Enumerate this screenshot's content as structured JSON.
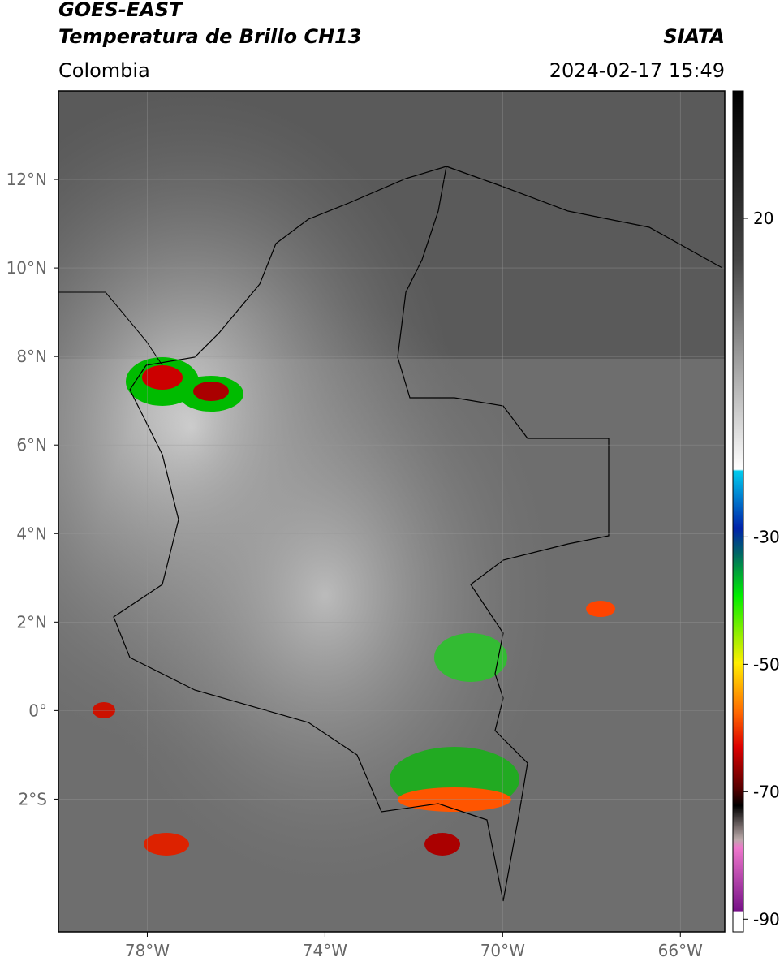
{
  "header": {
    "title": "GOES-EAST",
    "subtitle": "Temperatura de Brillo CH13",
    "source": "SIATA",
    "region": "Colombia",
    "datetime": "2024-02-17 15:49"
  },
  "map": {
    "xlim": [
      -80,
      -65
    ],
    "ylim": [
      -5,
      14
    ],
    "xticks": [
      {
        "value": -78,
        "label": "78°W"
      },
      {
        "value": -74,
        "label": "74°W"
      },
      {
        "value": -70,
        "label": "70°W"
      },
      {
        "value": -66,
        "label": "66°W"
      }
    ],
    "yticks": [
      {
        "value": 12,
        "label": "12°N"
      },
      {
        "value": 10,
        "label": "10°N"
      },
      {
        "value": 8,
        "label": "8°N"
      },
      {
        "value": 6,
        "label": "6°N"
      },
      {
        "value": 4,
        "label": "4°N"
      },
      {
        "value": 2,
        "label": "2°N"
      },
      {
        "value": 0,
        "label": "0°"
      },
      {
        "value": -2,
        "label": "2°S"
      }
    ]
  },
  "colorbar": {
    "lim": [
      -92,
      40
    ],
    "ticks": [
      20,
      -30,
      -50,
      -70,
      -90
    ]
  }
}
